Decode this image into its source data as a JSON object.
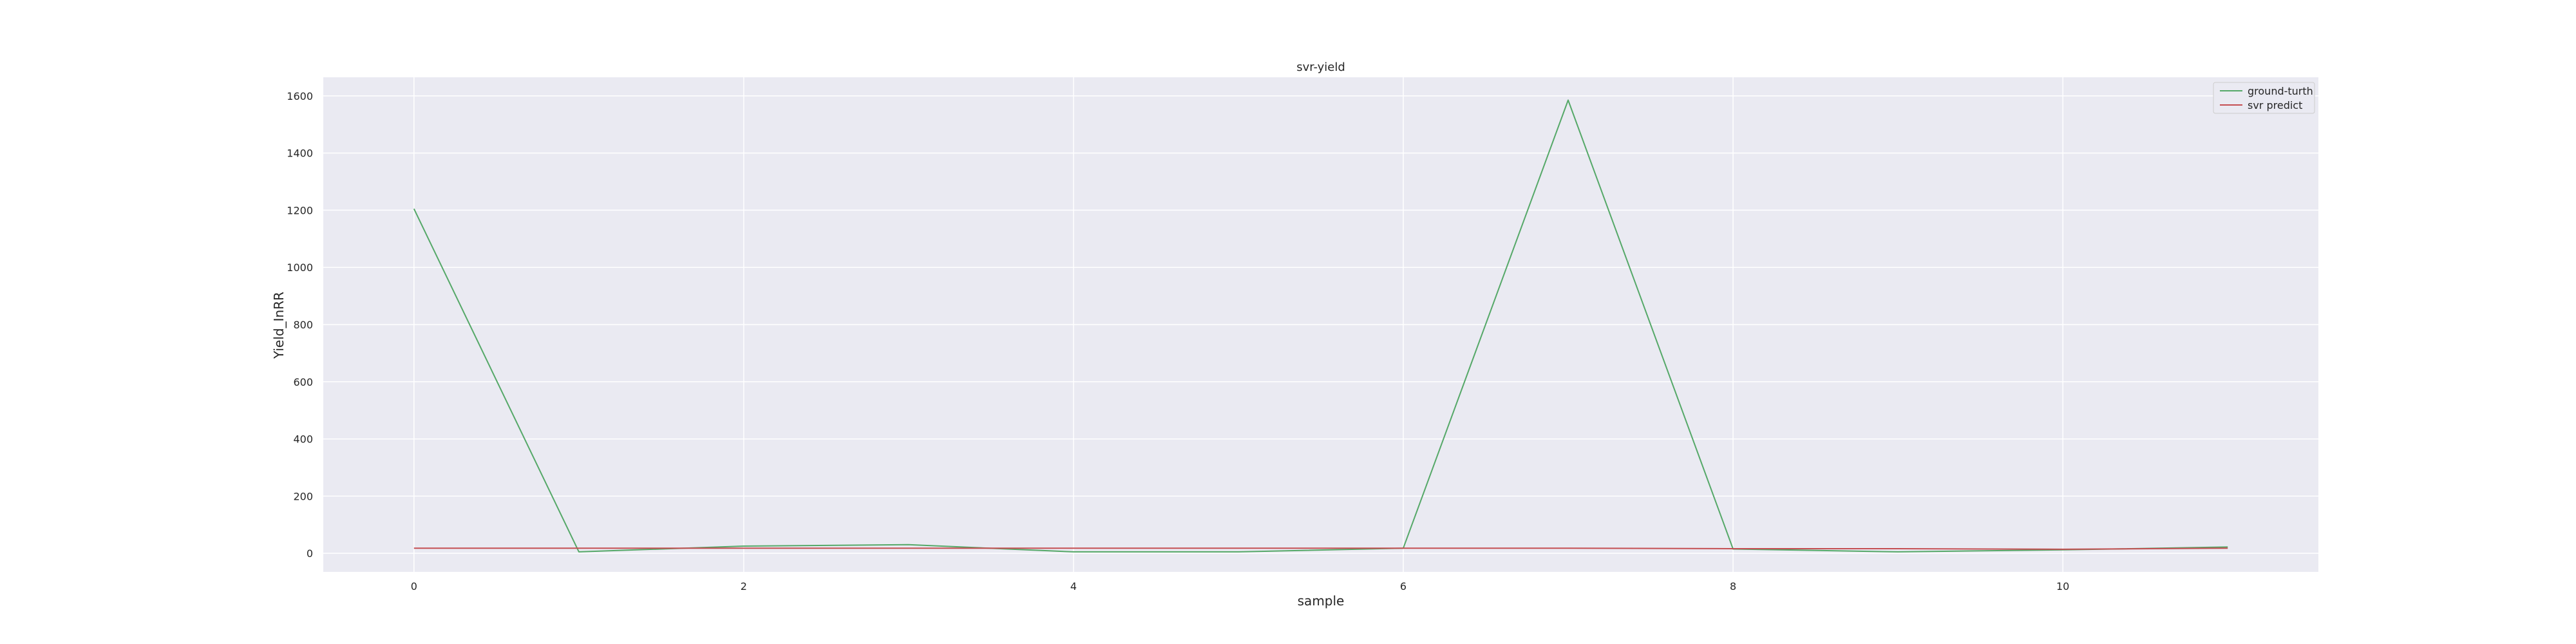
{
  "chart_data": {
    "type": "line",
    "title": "svr-yield",
    "xlabel": "sample",
    "ylabel": "Yield_InRR",
    "x": [
      0,
      1,
      2,
      3,
      4,
      5,
      6,
      7,
      8,
      9,
      10,
      11
    ],
    "xlim": [
      -0.55,
      11.55
    ],
    "ylim": [
      -65,
      1665
    ],
    "xticks": [
      0,
      2,
      4,
      6,
      8,
      10
    ],
    "yticks": [
      0,
      200,
      400,
      600,
      800,
      1000,
      1200,
      1400,
      1600
    ],
    "grid": true,
    "legend_position": "top-right",
    "colors": {
      "background": "#eaeaf2",
      "grid": "#ffffff",
      "text": "#262626"
    },
    "series": [
      {
        "name": "ground-turth",
        "color": "#55a868",
        "values": [
          1205,
          5,
          25,
          30,
          5,
          5,
          18,
          1585,
          15,
          5,
          12,
          22
        ]
      },
      {
        "name": "svr predict",
        "color": "#c44e52",
        "values": [
          18,
          18,
          18,
          18,
          18,
          18,
          18,
          18,
          16,
          16,
          14,
          18
        ]
      }
    ]
  }
}
